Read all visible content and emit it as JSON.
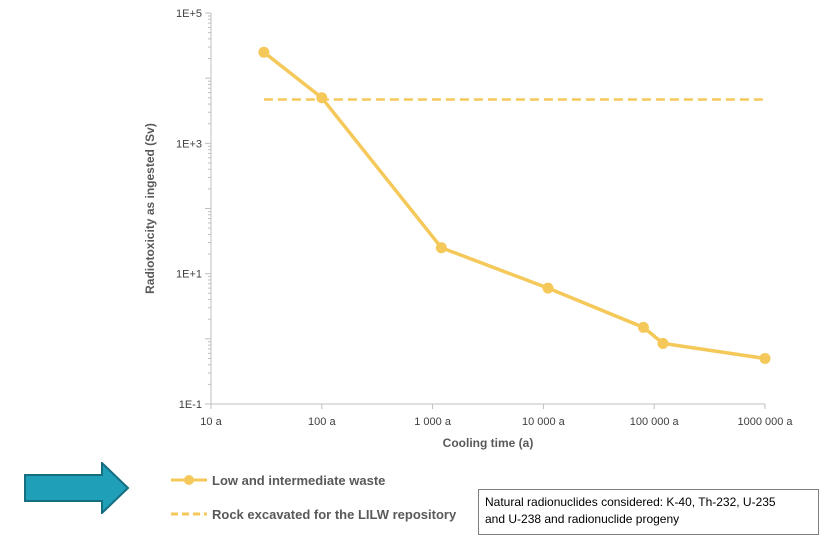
{
  "chart_data": {
    "type": "line",
    "xscale": "log",
    "yscale": "log",
    "xlabel": "Cooling time (a)",
    "ylabel": "Radiotoxicity as ingested  (Sv)",
    "xlim": [
      10,
      1000000
    ],
    "ylim": [
      0.1,
      100000
    ],
    "x_ticks": [
      {
        "value": 10,
        "label": "10 a"
      },
      {
        "value": 100,
        "label": "100 a"
      },
      {
        "value": 1000,
        "label": "1 000 a"
      },
      {
        "value": 10000,
        "label": "10 000 a"
      },
      {
        "value": 100000,
        "label": "100 000 a"
      },
      {
        "value": 1000000,
        "label": "1000 000 a"
      }
    ],
    "y_ticks": [
      {
        "value": 0.1,
        "label": "1E-1"
      },
      {
        "value": 10,
        "label": "1E+1"
      },
      {
        "value": 1000,
        "label": "1E+3"
      },
      {
        "value": 100000,
        "label": "1E+5"
      }
    ],
    "series": [
      {
        "name": "Low and intermediate waste",
        "color": "#F5C85A",
        "style": "solid",
        "markers": true,
        "x": [
          30,
          100,
          1200,
          11000,
          80000,
          120000,
          1000000
        ],
        "y": [
          25000,
          5000,
          25,
          6,
          1.5,
          0.85,
          0.5
        ]
      },
      {
        "name": "Rock excavated for the LILW repository",
        "color": "#F5C85A",
        "style": "dashed",
        "markers": false,
        "x": [
          30,
          1000000
        ],
        "y": [
          4700,
          4700
        ]
      }
    ],
    "grid": false,
    "legend_position": "bottom-left"
  },
  "note": {
    "line1": "Natural radionuclides considered: K-40, Th-232, U-235",
    "line2": "and U-238 and radionuclide progeny"
  },
  "arrow_color": "#1FA0B8"
}
